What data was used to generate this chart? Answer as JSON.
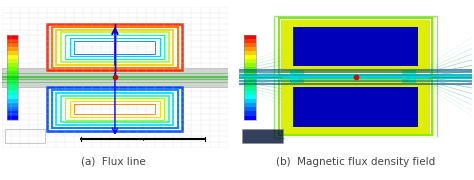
{
  "caption_a": "(a)  Flux line",
  "caption_b": "(b)  Magnetic flux density field",
  "fig_width": 4.74,
  "fig_height": 1.8,
  "bg_color": "#ffffff",
  "caption_fontsize": 7.5,
  "caption_color": "#444444",
  "left_panel_bg": "#e8e8e8",
  "right_panel_bg": "#0000bb",
  "grid_color": "#d0d0d0",
  "bar_color": "#c8c8c8",
  "bar_edge": "#aaaaaa",
  "coil_colors_upper": [
    "#ff4400",
    "#ff8800",
    "#ffdd00",
    "#aaff00",
    "#00ffaa",
    "#00ddff",
    "#0088ff"
  ],
  "coil_colors_lower": [
    "#0044ff",
    "#0088ff",
    "#00ddff",
    "#00ffaa",
    "#aaff00",
    "#ffdd00",
    "#ff8800"
  ],
  "arrow_color": "#0000ff",
  "dot_color": "#cc0000",
  "colorbar_colors": [
    "#ff0000",
    "#ff3300",
    "#ff6600",
    "#ff9900",
    "#ffcc00",
    "#ffff00",
    "#ccff00",
    "#99ff00",
    "#66ff00",
    "#33ff00",
    "#00ff00",
    "#00ff33",
    "#00ff66",
    "#00ff99",
    "#00ffcc",
    "#00ffff",
    "#00ccff",
    "#0099ff",
    "#0066ff",
    "#0033ff",
    "#0000ff"
  ],
  "scale_bar_color_left": "#000000",
  "scale_bar_color_right": "#ffffff",
  "right_coil_fill": "#0000aa",
  "right_coil_edge": "#ddff00",
  "right_coil_green": "#00ff88",
  "right_bg": "#0000cc"
}
